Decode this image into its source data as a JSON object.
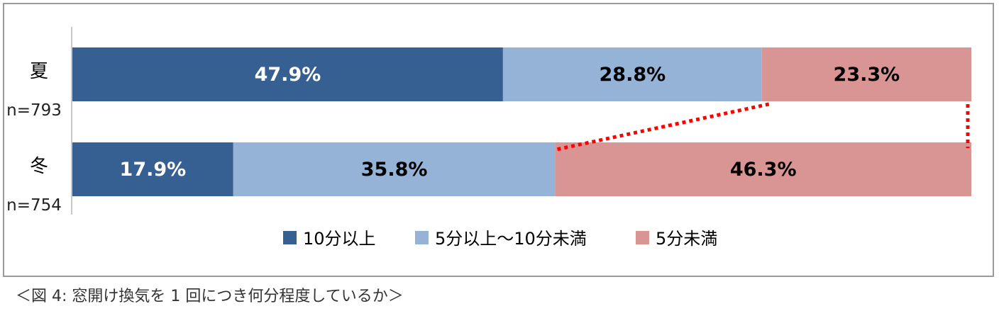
{
  "caption": "＜図 4:  窓開け換気を 1 回につき何分程度しているか＞",
  "chart_data": {
    "type": "bar",
    "stacked": true,
    "percent": true,
    "orientation": "horizontal",
    "categories": [
      {
        "label": "夏",
        "n_label": "n=793"
      },
      {
        "label": "冬",
        "n_label": "n=754"
      }
    ],
    "series": [
      {
        "name": "10分以上",
        "color": "#376092",
        "text_color": "#ffffff",
        "values": [
          47.9,
          17.9
        ],
        "value_labels": [
          "47.9%",
          "17.9%"
        ]
      },
      {
        "name": "5分以上～10分未満",
        "color": "#95b3d7",
        "text_color": "#000000",
        "values": [
          28.8,
          35.8
        ],
        "value_labels": [
          "28.8%",
          "35.8%"
        ]
      },
      {
        "name": "5分未満",
        "color": "#d99594",
        "text_color": "#000000",
        "values": [
          23.3,
          46.3
        ],
        "value_labels": [
          "23.3%",
          "46.3%"
        ]
      }
    ],
    "xlim": [
      0,
      100
    ],
    "legend_position": "bottom",
    "annotation": "red dotted lines connecting the 5分未満 segment of 夏 to that of 冬"
  }
}
